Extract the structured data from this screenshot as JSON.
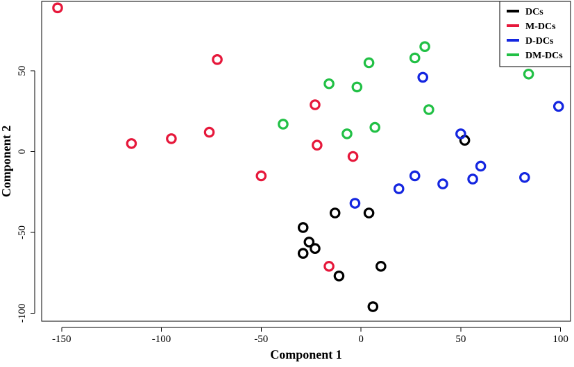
{
  "chart_data": {
    "type": "scatter",
    "xlabel": "Component 1",
    "ylabel": "Component 2",
    "xlim": [
      -160,
      105
    ],
    "ylim": [
      -105,
      93
    ],
    "x_ticks": [
      -150,
      -100,
      -50,
      0,
      50,
      100
    ],
    "y_ticks": [
      50,
      0,
      -50,
      -100
    ],
    "legend_placement": "top-right",
    "grid": false,
    "marker": "open-circle",
    "series": [
      {
        "name": "DCs",
        "color": "#000000",
        "points": [
          [
            52,
            7
          ],
          [
            -13,
            -38
          ],
          [
            4,
            -38
          ],
          [
            -29,
            -47
          ],
          [
            -26,
            -56
          ],
          [
            -23,
            -60
          ],
          [
            -29,
            -63
          ],
          [
            10,
            -71
          ],
          [
            -11,
            -77
          ],
          [
            6,
            -96
          ]
        ]
      },
      {
        "name": "M-DCs",
        "color": "#e6183b",
        "points": [
          [
            -152,
            89
          ],
          [
            -72,
            57
          ],
          [
            -23,
            29
          ],
          [
            -76,
            12
          ],
          [
            -95,
            8
          ],
          [
            -115,
            5
          ],
          [
            -22,
            4
          ],
          [
            -4,
            -3
          ],
          [
            -50,
            -15
          ],
          [
            -16,
            -71
          ]
        ]
      },
      {
        "name": "D-DCs",
        "color": "#1426e0",
        "points": [
          [
            31,
            46
          ],
          [
            99,
            28
          ],
          [
            50,
            11
          ],
          [
            60,
            -9
          ],
          [
            27,
            -15
          ],
          [
            56,
            -17
          ],
          [
            82,
            -16
          ],
          [
            41,
            -20
          ],
          [
            19,
            -23
          ],
          [
            -3,
            -32
          ]
        ]
      },
      {
        "name": "DM-DCs",
        "color": "#21c045",
        "points": [
          [
            32,
            65
          ],
          [
            27,
            58
          ],
          [
            4,
            55
          ],
          [
            84,
            48
          ],
          [
            -16,
            42
          ],
          [
            -2,
            40
          ],
          [
            34,
            26
          ],
          [
            -39,
            17
          ],
          [
            7,
            15
          ],
          [
            -7,
            11
          ]
        ]
      }
    ]
  }
}
